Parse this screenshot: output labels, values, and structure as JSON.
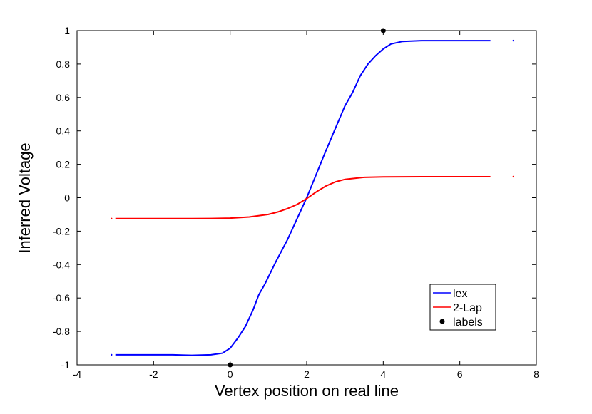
{
  "chart_data": {
    "type": "line",
    "xlabel": "Vertex position on real line",
    "ylabel": "Inferred Voltage",
    "xlim": [
      -4,
      8
    ],
    "ylim": [
      -1,
      1
    ],
    "xticks": [
      -4,
      -2,
      0,
      2,
      4,
      6,
      8
    ],
    "xtick_labels": [
      "-4",
      "-2",
      "0",
      "2",
      "4",
      "6",
      "8"
    ],
    "yticks": [
      -1,
      -0.8,
      -0.6,
      -0.4,
      -0.2,
      0,
      0.2,
      0.4,
      0.6,
      0.8,
      1
    ],
    "ytick_labels": [
      "-1",
      "-0.8",
      "-0.6",
      "-0.4",
      "-0.2",
      "0",
      "0.2",
      "0.4",
      "0.6",
      "0.8",
      "1"
    ],
    "grid": false,
    "legend_position": "bottom-right",
    "series": [
      {
        "name": "lex",
        "color": "#0000ff",
        "style": "line",
        "x": [
          -3.0,
          -2.5,
          -2.0,
          -1.5,
          -1.0,
          -0.5,
          -0.2,
          0.0,
          0.2,
          0.4,
          0.6,
          0.75,
          0.9,
          1.2,
          1.5,
          2.0,
          2.5,
          3.0,
          3.2,
          3.4,
          3.6,
          3.8,
          4.0,
          4.2,
          4.5,
          5.0,
          5.5,
          6.0,
          6.8
        ],
        "y": [
          -0.94,
          -0.94,
          -0.94,
          -0.94,
          -0.943,
          -0.94,
          -0.93,
          -0.9,
          -0.84,
          -0.77,
          -0.67,
          -0.58,
          -0.52,
          -0.38,
          -0.25,
          0.0,
          0.28,
          0.55,
          0.63,
          0.73,
          0.8,
          0.85,
          0.89,
          0.92,
          0.935,
          0.94,
          0.94,
          0.94,
          0.94
        ]
      },
      {
        "name": "2-Lap",
        "color": "#ff0000",
        "style": "line",
        "x": [
          -3.0,
          -2.5,
          -2.0,
          -1.5,
          -1.0,
          -0.5,
          0.0,
          0.5,
          1.0,
          1.25,
          1.5,
          1.75,
          2.0,
          2.25,
          2.5,
          2.75,
          3.0,
          3.5,
          4.0,
          5.0,
          6.0,
          6.8
        ],
        "y": [
          -0.125,
          -0.125,
          -0.125,
          -0.125,
          -0.125,
          -0.124,
          -0.122,
          -0.115,
          -0.1,
          -0.085,
          -0.065,
          -0.04,
          -0.005,
          0.035,
          0.07,
          0.095,
          0.11,
          0.122,
          0.125,
          0.126,
          0.126,
          0.126
        ]
      },
      {
        "name": "labels",
        "color": "#000000",
        "style": "scatter",
        "x": [
          0,
          4
        ],
        "y": [
          -1,
          1
        ]
      }
    ],
    "outliers": [
      {
        "series": "lex",
        "x": 7.4,
        "y": 0.94
      },
      {
        "series": "lex",
        "x": -3.1,
        "y": -0.94
      },
      {
        "series": "2-Lap",
        "x": 7.4,
        "y": 0.126
      },
      {
        "series": "2-Lap",
        "x": -3.1,
        "y": -0.125
      }
    ]
  }
}
